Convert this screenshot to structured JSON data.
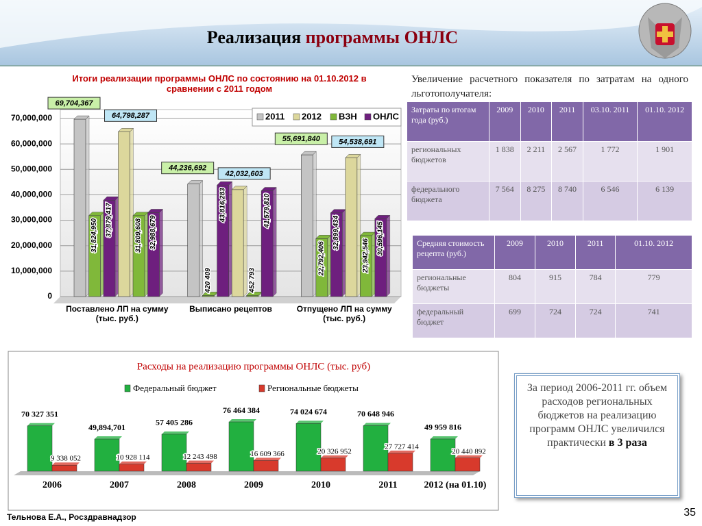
{
  "header": {
    "title_black": "Реализация",
    "title_red": "программы ОНЛС"
  },
  "chart_data": [
    {
      "type": "bar3d_grouped",
      "title": "Итоги реализации программы ОНЛС по состоянию на  01.10.2012 в сравнении с 2011 годом",
      "categories": [
        "Поставлено ЛП на сумму (тыс. руб.)",
        "Выписано рецептов",
        "Отпущено ЛП на сумму (тыс. руб.)"
      ],
      "series": [
        {
          "name": "2011",
          "color": "#c4c4c4",
          "label_bg": "#c9f0a8",
          "values": [
            69704367,
            44236692,
            55691840
          ],
          "value_labels": [
            "69,704,367",
            "44,236,692",
            "55,691,840"
          ]
        },
        {
          "name": "2012",
          "color": "#dcd79c",
          "label_bg": "#bfe6f5",
          "values": [
            64798287,
            42032603,
            54538691
          ],
          "value_labels": [
            "64,798,287",
            "42,032,603",
            "54,538,691"
          ]
        },
        {
          "name": "ВЗН",
          "color": "#80b83a",
          "values": [
            [
              31824950,
              31809608
            ],
            [
              420409,
              452793
            ],
            [
              22792406,
              23942546
            ]
          ],
          "value_labels": [
            [
              "31,824,950",
              "31,809,608"
            ],
            [
              "420 409",
              "452 793"
            ],
            [
              "22,792,406",
              "23,942,546"
            ]
          ]
        },
        {
          "name": "ОНЛС",
          "color": "#6e1f7e",
          "values": [
            [
              37879417,
              32988679
            ],
            [
              43816283,
              41579810
            ],
            [
              32899434,
              30596145
            ]
          ],
          "value_labels": [
            [
              "37,879,417",
              "32,988,679"
            ],
            [
              "43,816,283",
              "41,579,810"
            ],
            [
              "32,899,434",
              "30,596,145"
            ]
          ]
        }
      ],
      "ylim": [
        0,
        70000000
      ],
      "yticks": [
        0,
        {
          "value": 10000000,
          "label": "10,000,000"
        },
        {
          "value": 20000000,
          "label": "20,000,000"
        },
        {
          "value": 30000000,
          "label": "30,000,000"
        },
        {
          "value": 40000000,
          "label": "40,000,000"
        },
        {
          "value": 50000000,
          "label": "50,000,000"
        },
        {
          "value": 60000000,
          "label": "60,000,000"
        },
        {
          "value": 70000000,
          "label": "70,000,000"
        }
      ],
      "grid": true,
      "legend": "top-right"
    },
    {
      "type": "bar",
      "title": "Расходы на реализацию программы ОНЛС (тыс. руб)",
      "categories": [
        "2006",
        "2007",
        "2008",
        "2009",
        "2010",
        "2011",
        "2012 (на 01.10)"
      ],
      "series": [
        {
          "name": "Федеральный бюджет",
          "color": "#22b040",
          "values": [
            70327351,
            49894701,
            57405286,
            76464384,
            74024674,
            70648946,
            49959816
          ],
          "value_labels": [
            "70 327 351",
            "49,894,701",
            "57 405 286",
            "76 464 384",
            "74 024 674",
            "70 648 946",
            "49 959 816"
          ]
        },
        {
          "name": "Региональные бюджеты",
          "color": "#d83a2c",
          "values": [
            9338052,
            10928114,
            12243498,
            16609366,
            20326952,
            27727414,
            20440892
          ],
          "value_labels": [
            "9 338 052",
            "10 928 114",
            "12 243 498",
            "16 609 366",
            "20 326 952",
            "27 727 414",
            "20 440 892"
          ]
        }
      ],
      "legend": "top"
    }
  ],
  "heading": "Увеличение расчетного показателя по затратам на одного льготополучателя:",
  "tables": [
    {
      "header": [
        "Затраты по итогам года (руб.)",
        "2009",
        "2010",
        "2011",
        "03.10. 2011",
        "01.10. 2012"
      ],
      "rows": [
        [
          "региональных бюджетов",
          "1 838",
          "2 211",
          "2 567",
          "1 772",
          "1 901"
        ],
        [
          "федерального бюджета",
          "7 564",
          "8 275",
          "8 740",
          "6 546",
          "6 139"
        ]
      ]
    },
    {
      "header": [
        "Средняя стоимость рецепта (руб.)",
        "2009",
        "2010",
        "2011",
        "01.10. 2012"
      ],
      "rows": [
        [
          "региональные бюджеты",
          "804",
          "915",
          "784",
          "779"
        ],
        [
          "федеральный бюджет",
          "699",
          "724",
          "724",
          "741"
        ]
      ]
    }
  ],
  "note": {
    "text": "За период 2006-2011 гг. объем расходов региональных бюджетов на реализацию программ ОНЛС увеличился практически",
    "emphasis": "в 3 раза"
  },
  "footer": {
    "author": "Тельнова Е.А., Росздравнадзор",
    "page": 35
  }
}
